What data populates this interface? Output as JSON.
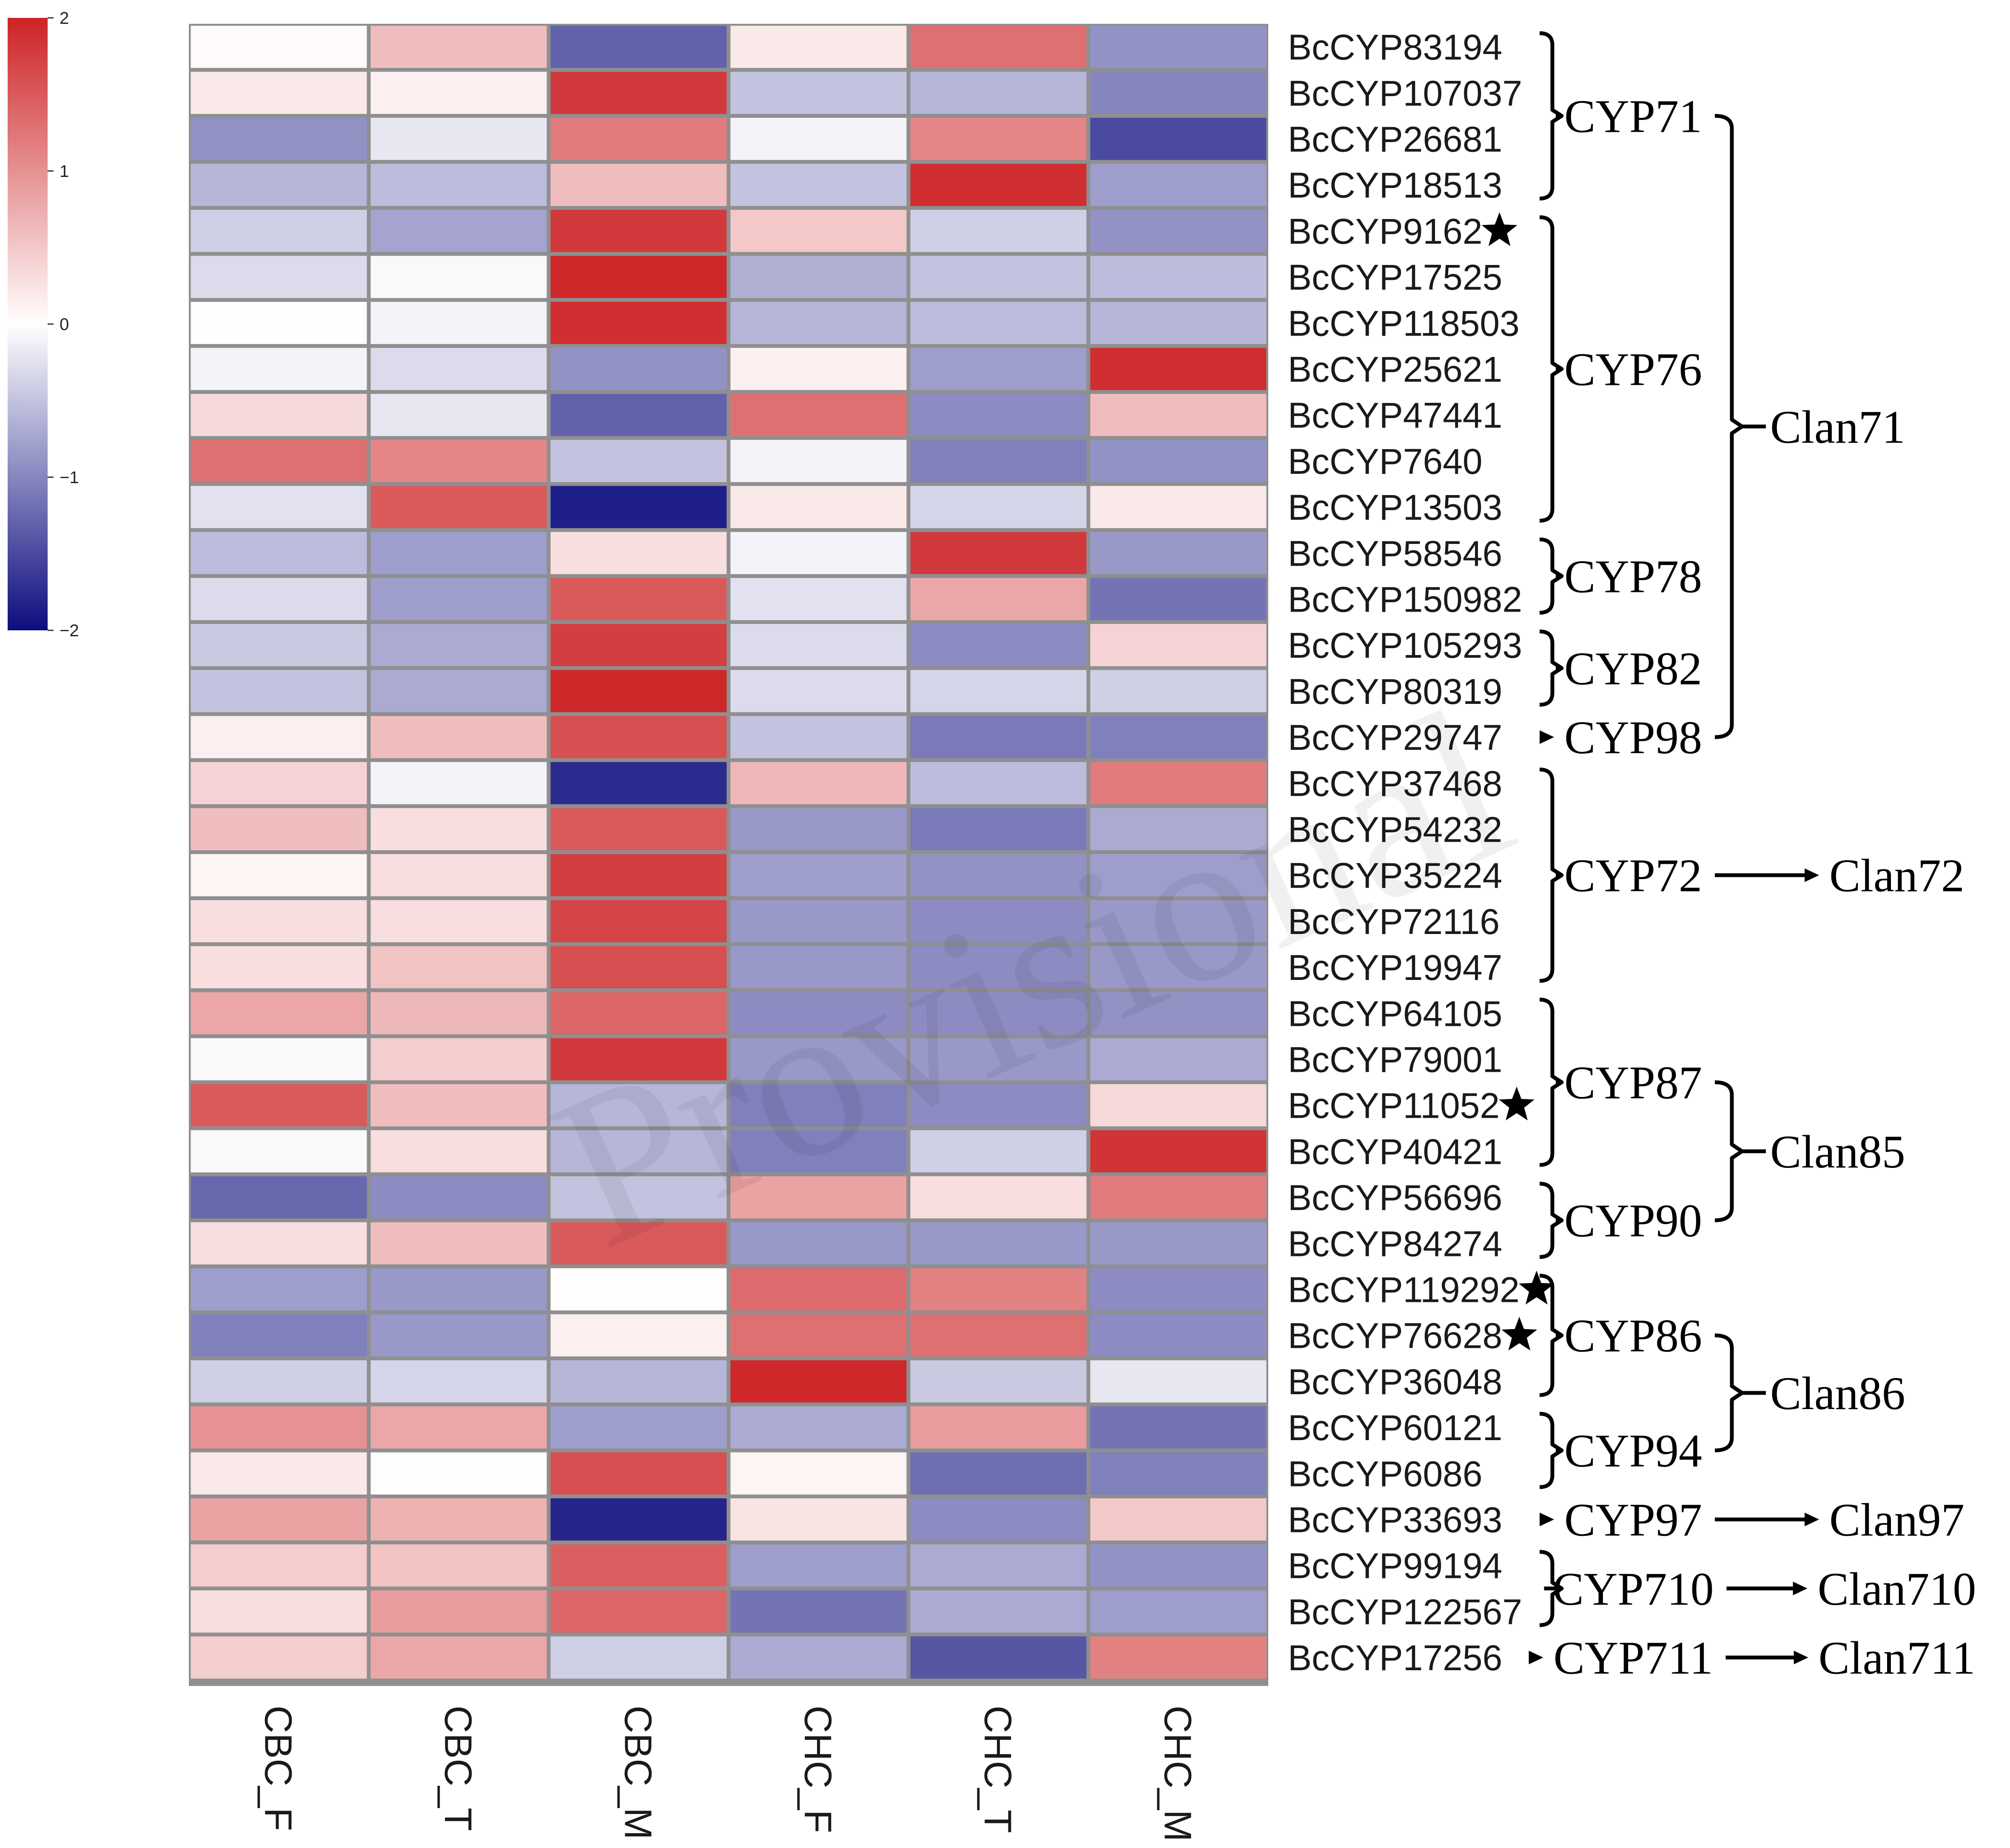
{
  "chart_data": {
    "type": "heatmap",
    "title": "",
    "columns": [
      "CBC_F",
      "CBC_T",
      "CBC_M",
      "CHC_F",
      "CHC_T",
      "CHC_M"
    ],
    "colorbar": {
      "min": -2,
      "max": 2,
      "ticks": [
        {
          "value": 2,
          "label": "2"
        },
        {
          "value": 1,
          "label": "1"
        },
        {
          "value": 0,
          "label": "0"
        },
        {
          "value": -1,
          "label": "−1"
        },
        {
          "value": -2,
          "label": "−2"
        }
      ],
      "low_color": "#0d0d7f",
      "mid_color": "#ffffff",
      "high_color": "#cd2326"
    },
    "rows": [
      {
        "gene": "BcCYP83194",
        "star": false,
        "values": [
          0.05,
          0.6,
          -1.3,
          0.2,
          1.3,
          -0.9
        ]
      },
      {
        "gene": "BcCYP107037",
        "star": false,
        "values": [
          0.2,
          0.15,
          1.8,
          -0.5,
          -0.6,
          -1.0
        ]
      },
      {
        "gene": "BcCYP26681",
        "star": false,
        "values": [
          -0.9,
          -0.2,
          1.2,
          -0.1,
          1.1,
          -1.5
        ]
      },
      {
        "gene": "BcCYP18513",
        "star": false,
        "values": [
          -0.6,
          -0.55,
          0.6,
          -0.5,
          1.9,
          -0.8
        ]
      },
      {
        "gene": "BcCYP9162",
        "star": true,
        "values": [
          -0.4,
          -0.75,
          1.8,
          0.5,
          -0.4,
          -0.9
        ]
      },
      {
        "gene": "BcCYP17525",
        "star": false,
        "values": [
          -0.3,
          -0.05,
          1.95,
          -0.65,
          -0.5,
          -0.55
        ]
      },
      {
        "gene": "BcCYP118503",
        "star": false,
        "values": [
          0.02,
          -0.1,
          1.9,
          -0.6,
          -0.55,
          -0.6
        ]
      },
      {
        "gene": "BcCYP25621",
        "star": false,
        "values": [
          -0.1,
          -0.3,
          -0.9,
          0.15,
          -0.8,
          1.9
        ]
      },
      {
        "gene": "BcCYP47441",
        "star": false,
        "values": [
          0.35,
          -0.2,
          -1.3,
          1.3,
          -0.95,
          0.6
        ]
      },
      {
        "gene": "BcCYP7640",
        "star": false,
        "values": [
          1.3,
          1.1,
          -0.5,
          -0.1,
          -1.05,
          -0.9
        ]
      },
      {
        "gene": "BcCYP13503",
        "star": false,
        "values": [
          -0.25,
          1.5,
          -1.85,
          0.2,
          -0.35,
          0.2
        ]
      },
      {
        "gene": "BcCYP58546",
        "star": false,
        "values": [
          -0.55,
          -0.8,
          0.3,
          -0.1,
          1.8,
          -0.85
        ]
      },
      {
        "gene": "BcCYP150982",
        "star": false,
        "values": [
          -0.3,
          -0.8,
          1.5,
          -0.25,
          0.8,
          -1.15
        ]
      },
      {
        "gene": "BcCYP105293",
        "star": false,
        "values": [
          -0.45,
          -0.7,
          1.75,
          -0.3,
          -0.95,
          0.4
        ]
      },
      {
        "gene": "BcCYP80319",
        "star": false,
        "values": [
          -0.5,
          -0.7,
          1.95,
          -0.3,
          -0.35,
          -0.4
        ]
      },
      {
        "gene": "BcCYP29747",
        "star": false,
        "values": [
          0.15,
          0.6,
          1.6,
          -0.5,
          -1.1,
          -1.05
        ]
      },
      {
        "gene": "BcCYP37468",
        "star": false,
        "values": [
          0.4,
          -0.1,
          -1.75,
          0.65,
          -0.55,
          1.2
        ]
      },
      {
        "gene": "BcCYP54232",
        "star": false,
        "values": [
          0.6,
          0.3,
          1.5,
          -0.85,
          -1.1,
          -0.7
        ]
      },
      {
        "gene": "BcCYP35224",
        "star": false,
        "values": [
          0.1,
          0.3,
          1.75,
          -0.8,
          -0.9,
          -0.8
        ]
      },
      {
        "gene": "BcCYP72116",
        "star": false,
        "values": [
          0.3,
          0.3,
          1.7,
          -0.85,
          -0.95,
          -0.85
        ]
      },
      {
        "gene": "BcCYP19947",
        "star": false,
        "values": [
          0.3,
          0.55,
          1.6,
          -0.85,
          -0.95,
          -0.85
        ]
      },
      {
        "gene": "BcCYP64105",
        "star": false,
        "values": [
          0.8,
          0.65,
          1.4,
          -0.95,
          -0.95,
          -0.9
        ]
      },
      {
        "gene": "BcCYP79001",
        "star": false,
        "values": [
          -0.05,
          0.45,
          1.8,
          -0.85,
          -0.85,
          -0.7
        ]
      },
      {
        "gene": "BcCYP11052",
        "star": true,
        "values": [
          1.5,
          0.6,
          -0.6,
          -1.05,
          -0.95,
          0.35
        ]
      },
      {
        "gene": "BcCYP40421",
        "star": false,
        "values": [
          -0.05,
          0.3,
          -0.6,
          -1.05,
          -0.4,
          1.85
        ]
      },
      {
        "gene": "BcCYP56696",
        "star": false,
        "values": [
          -1.25,
          -0.95,
          -0.5,
          0.85,
          0.3,
          1.2
        ]
      },
      {
        "gene": "BcCYP84274",
        "star": false,
        "values": [
          0.3,
          0.6,
          1.5,
          -0.85,
          -0.85,
          -0.85
        ]
      },
      {
        "gene": "BcCYP119292",
        "star": true,
        "values": [
          -0.8,
          -0.85,
          0.02,
          1.35,
          1.15,
          -0.95
        ]
      },
      {
        "gene": "BcCYP76628",
        "star": true,
        "values": [
          -1.05,
          -0.85,
          0.15,
          1.3,
          1.3,
          -0.95
        ]
      },
      {
        "gene": "BcCYP36048",
        "star": false,
        "values": [
          -0.4,
          -0.35,
          -0.6,
          1.95,
          -0.45,
          -0.2
        ]
      },
      {
        "gene": "BcCYP60121",
        "star": false,
        "values": [
          1.0,
          0.8,
          -0.8,
          -0.7,
          0.9,
          -1.15
        ]
      },
      {
        "gene": "BcCYP6086",
        "star": false,
        "values": [
          0.2,
          0.01,
          1.6,
          0.1,
          -1.2,
          -1.05
        ]
      },
      {
        "gene": "BcCYP33693",
        "star": false,
        "values": [
          0.85,
          0.7,
          -1.8,
          0.25,
          -0.95,
          0.5
        ]
      },
      {
        "gene": "BcCYP99194",
        "star": false,
        "values": [
          0.45,
          0.55,
          1.45,
          -0.8,
          -0.7,
          -0.9
        ]
      },
      {
        "gene": "BcCYP122567",
        "star": false,
        "values": [
          0.3,
          0.9,
          1.4,
          -1.15,
          -0.7,
          -0.8
        ]
      },
      {
        "gene": "BcCYP17256",
        "star": false,
        "values": [
          0.45,
          0.8,
          -0.4,
          -0.7,
          -1.4,
          1.15
        ]
      }
    ],
    "families": [
      {
        "name": "CYP71",
        "start": 0,
        "end": 3,
        "arrow": false
      },
      {
        "name": "CYP76",
        "start": 4,
        "end": 10,
        "arrow": false
      },
      {
        "name": "CYP78",
        "start": 11,
        "end": 12,
        "arrow": false
      },
      {
        "name": "CYP82",
        "start": 13,
        "end": 14,
        "arrow": false
      },
      {
        "name": "CYP98",
        "start": 15,
        "end": 15,
        "arrow": true
      },
      {
        "name": "CYP72",
        "start": 16,
        "end": 20,
        "arrow": false
      },
      {
        "name": "CYP87",
        "start": 21,
        "end": 24,
        "arrow": false
      },
      {
        "name": "CYP90",
        "start": 25,
        "end": 26,
        "arrow": false
      },
      {
        "name": "CYP86",
        "start": 27,
        "end": 29,
        "arrow": false
      },
      {
        "name": "CYP94",
        "start": 30,
        "end": 31,
        "arrow": false
      },
      {
        "name": "CYP97",
        "start": 32,
        "end": 32,
        "arrow": true
      },
      {
        "name": "CYP710",
        "start": 33,
        "end": 34,
        "arrow": false
      },
      {
        "name": "CYP711",
        "start": 35,
        "end": 35,
        "arrow": true
      }
    ],
    "clans": [
      {
        "name": "Clan71",
        "families": [
          "CYP71",
          "CYP76",
          "CYP78",
          "CYP82",
          "CYP98"
        ],
        "arrow": false
      },
      {
        "name": "Clan72",
        "families": [
          "CYP72"
        ],
        "arrow": true
      },
      {
        "name": "Clan85",
        "families": [
          "CYP87",
          "CYP90"
        ],
        "arrow": false
      },
      {
        "name": "Clan86",
        "families": [
          "CYP86",
          "CYP94"
        ],
        "arrow": false
      },
      {
        "name": "Clan97",
        "families": [
          "CYP97"
        ],
        "arrow": true
      },
      {
        "name": "Clan710",
        "families": [
          "CYP710"
        ],
        "arrow": true
      },
      {
        "name": "Clan711",
        "families": [
          "CYP711"
        ],
        "arrow": true
      }
    ],
    "watermark": "Provisional"
  }
}
